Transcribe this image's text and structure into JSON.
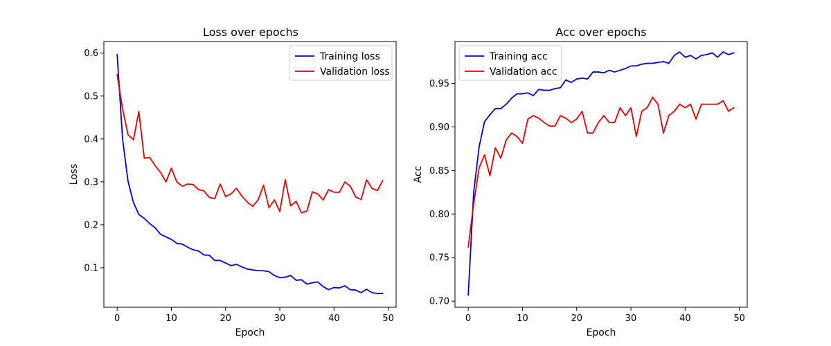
{
  "chart_data": [
    {
      "type": "line",
      "title": "Loss over epochs",
      "xlabel": "Epoch",
      "ylabel": "Loss",
      "xlim": [
        -2.45,
        51.45
      ],
      "ylim": [
        0.008,
        0.627
      ],
      "xticks": [
        0,
        10,
        20,
        30,
        40,
        50
      ],
      "yticks": [
        0.1,
        0.2,
        0.3,
        0.4,
        0.5,
        0.6
      ],
      "ytick_labels": [
        "0.1",
        "0.2",
        "0.3",
        "0.4",
        "0.5",
        "0.6"
      ],
      "legend": "top-right",
      "grid": false,
      "x": [
        0,
        1,
        2,
        3,
        4,
        5,
        6,
        7,
        8,
        9,
        10,
        11,
        12,
        13,
        14,
        15,
        16,
        17,
        18,
        19,
        20,
        21,
        22,
        23,
        24,
        25,
        26,
        27,
        28,
        29,
        30,
        31,
        32,
        33,
        34,
        35,
        36,
        37,
        38,
        39,
        40,
        41,
        42,
        43,
        44,
        45,
        46,
        47,
        48,
        49
      ],
      "series": [
        {
          "name": "Training loss",
          "color": "#0000cc",
          "values": [
            0.597,
            0.4,
            0.302,
            0.252,
            0.224,
            0.215,
            0.203,
            0.193,
            0.178,
            0.172,
            0.166,
            0.157,
            0.155,
            0.148,
            0.142,
            0.139,
            0.13,
            0.129,
            0.117,
            0.117,
            0.111,
            0.105,
            0.108,
            0.102,
            0.097,
            0.095,
            0.093,
            0.093,
            0.091,
            0.082,
            0.077,
            0.078,
            0.082,
            0.071,
            0.072,
            0.062,
            0.065,
            0.067,
            0.056,
            0.049,
            0.054,
            0.053,
            0.058,
            0.049,
            0.048,
            0.042,
            0.05,
            0.042,
            0.04,
            0.04
          ]
        },
        {
          "name": "Validation loss",
          "color": "#dd0000",
          "values": [
            0.55,
            0.47,
            0.41,
            0.398,
            0.464,
            0.355,
            0.357,
            0.338,
            0.322,
            0.3,
            0.332,
            0.3,
            0.29,
            0.295,
            0.294,
            0.282,
            0.279,
            0.264,
            0.261,
            0.295,
            0.266,
            0.272,
            0.285,
            0.267,
            0.253,
            0.243,
            0.258,
            0.292,
            0.24,
            0.258,
            0.231,
            0.305,
            0.244,
            0.255,
            0.228,
            0.232,
            0.277,
            0.272,
            0.258,
            0.282,
            0.276,
            0.276,
            0.3,
            0.29,
            0.265,
            0.259,
            0.305,
            0.285,
            0.28,
            0.303
          ]
        }
      ]
    },
    {
      "type": "line",
      "title": "Acc over epochs",
      "xlabel": "Epoch",
      "ylabel": "Acc",
      "xlim": [
        -2.45,
        51.45
      ],
      "ylim": [
        0.693,
        0.998
      ],
      "xticks": [
        0,
        10,
        20,
        30,
        40,
        50
      ],
      "yticks": [
        0.7,
        0.75,
        0.8,
        0.85,
        0.9,
        0.95
      ],
      "ytick_labels": [
        "0.70",
        "0.75",
        "0.80",
        "0.85",
        "0.90",
        "0.95"
      ],
      "legend": "top-left",
      "grid": false,
      "x": [
        0,
        1,
        2,
        3,
        4,
        5,
        6,
        7,
        8,
        9,
        10,
        11,
        12,
        13,
        14,
        15,
        16,
        17,
        18,
        19,
        20,
        21,
        22,
        23,
        24,
        25,
        26,
        27,
        28,
        29,
        30,
        31,
        32,
        33,
        34,
        35,
        36,
        37,
        38,
        39,
        40,
        41,
        42,
        43,
        44,
        45,
        46,
        47,
        48,
        49
      ],
      "series": [
        {
          "name": "Training acc",
          "color": "#0000cc",
          "values": [
            0.707,
            0.825,
            0.877,
            0.906,
            0.914,
            0.921,
            0.921,
            0.926,
            0.933,
            0.938,
            0.938,
            0.939,
            0.936,
            0.943,
            0.942,
            0.942,
            0.944,
            0.945,
            0.954,
            0.951,
            0.955,
            0.956,
            0.955,
            0.963,
            0.963,
            0.962,
            0.965,
            0.963,
            0.965,
            0.967,
            0.97,
            0.97,
            0.972,
            0.973,
            0.973,
            0.974,
            0.975,
            0.973,
            0.982,
            0.986,
            0.98,
            0.982,
            0.978,
            0.982,
            0.983,
            0.985,
            0.98,
            0.986,
            0.983,
            0.985
          ]
        },
        {
          "name": "Validation acc",
          "color": "#dd0000",
          "values": [
            0.762,
            0.812,
            0.853,
            0.868,
            0.844,
            0.876,
            0.864,
            0.885,
            0.893,
            0.889,
            0.881,
            0.909,
            0.913,
            0.91,
            0.905,
            0.901,
            0.901,
            0.913,
            0.91,
            0.905,
            0.909,
            0.918,
            0.893,
            0.893,
            0.905,
            0.913,
            0.905,
            0.905,
            0.922,
            0.913,
            0.922,
            0.889,
            0.918,
            0.922,
            0.934,
            0.926,
            0.893,
            0.913,
            0.918,
            0.926,
            0.922,
            0.926,
            0.909,
            0.926,
            0.926,
            0.926,
            0.926,
            0.93,
            0.918,
            0.922
          ]
        }
      ]
    }
  ]
}
